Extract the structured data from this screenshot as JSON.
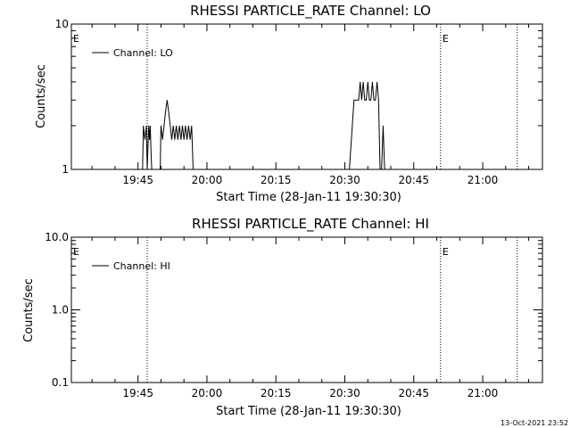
{
  "footer": {
    "timestamp": "13-Oct-2021 23:52"
  },
  "chart_data": [
    {
      "type": "line",
      "title": "RHESSI PARTICLE_RATE Channel: LO",
      "xlabel": "Start Time (28-Jan-11 19:30:30)",
      "ylabel": "Counts/sec",
      "y_scale": "log",
      "ylim": [
        1,
        10
      ],
      "xlim": [
        "19:30:30",
        "21:13:00"
      ],
      "xticks": [
        "19:45",
        "20:00",
        "20:15",
        "20:30",
        "20:45",
        "21:00"
      ],
      "yticks": [
        "1",
        "10"
      ],
      "legend": {
        "position": "top-left",
        "entries": [
          "Channel: LO"
        ]
      },
      "annotations": [
        {
          "text": "E",
          "x": "19:30:30"
        },
        {
          "text": "E",
          "x": "20:50:50"
        }
      ],
      "vertical_lines": [
        "19:47:00",
        "20:50:50",
        "21:07:30"
      ],
      "series": [
        {
          "name": "Channel: LO",
          "x": [
            "19:30:30",
            "19:46:00",
            "19:46:10",
            "19:46:30",
            "19:46:50",
            "19:47:00",
            "19:47:20",
            "19:47:30",
            "19:47:40",
            "19:47:50",
            "19:48:00",
            "19:49:50",
            "19:50:00",
            "19:50:20",
            "19:50:40",
            "19:51:00",
            "19:51:20",
            "19:51:40",
            "19:52:00",
            "19:52:20",
            "19:52:40",
            "19:53:00",
            "19:53:20",
            "19:53:40",
            "19:54:00",
            "19:54:20",
            "19:54:40",
            "19:55:00",
            "19:55:20",
            "19:55:40",
            "19:56:00",
            "19:56:20",
            "19:56:40",
            "19:57:00",
            "20:31:00",
            "20:32:00",
            "20:33:00",
            "20:33:20",
            "20:33:40",
            "20:34:00",
            "20:34:20",
            "20:34:40",
            "20:35:00",
            "20:35:20",
            "20:35:40",
            "20:36:00",
            "20:36:20",
            "20:36:40",
            "20:37:00",
            "20:37:20",
            "20:37:40",
            "20:38:00",
            "20:38:20",
            "20:38:40",
            "20:39:00",
            "20:39:20",
            "21:13:00"
          ],
          "values": [
            1,
            1,
            2,
            1.6,
            2,
            1,
            2,
            1.6,
            2,
            1.3,
            1,
            1,
            2,
            1.6,
            2,
            2.5,
            3,
            2.5,
            2,
            1.6,
            2,
            1.6,
            2,
            1.6,
            2,
            1.6,
            2,
            1.6,
            2,
            1.6,
            2,
            1.6,
            2,
            1,
            1,
            3,
            3,
            4,
            3,
            4,
            3,
            3,
            4,
            3,
            3,
            4,
            3,
            3,
            4,
            3,
            1,
            1,
            2,
            1,
            1,
            1,
            1
          ]
        }
      ]
    },
    {
      "type": "line",
      "title": "RHESSI PARTICLE_RATE Channel: HI",
      "xlabel": "Start Time (28-Jan-11 19:30:30)",
      "ylabel": "Counts/sec",
      "y_scale": "log",
      "ylim": [
        0.1,
        10
      ],
      "xlim": [
        "19:30:30",
        "21:13:00"
      ],
      "xticks": [
        "19:45",
        "20:00",
        "20:15",
        "20:30",
        "20:45",
        "21:00"
      ],
      "yticks": [
        "0.1",
        "1.0",
        "10.0"
      ],
      "legend": {
        "position": "top-left",
        "entries": [
          "Channel: HI"
        ]
      },
      "annotations": [
        {
          "text": "E",
          "x": "19:30:30"
        },
        {
          "text": "E",
          "x": "20:50:50"
        }
      ],
      "vertical_lines": [
        "19:47:00",
        "20:50:50",
        "21:07:30"
      ],
      "series": [
        {
          "name": "Channel: HI",
          "x": [],
          "values": []
        }
      ]
    }
  ]
}
